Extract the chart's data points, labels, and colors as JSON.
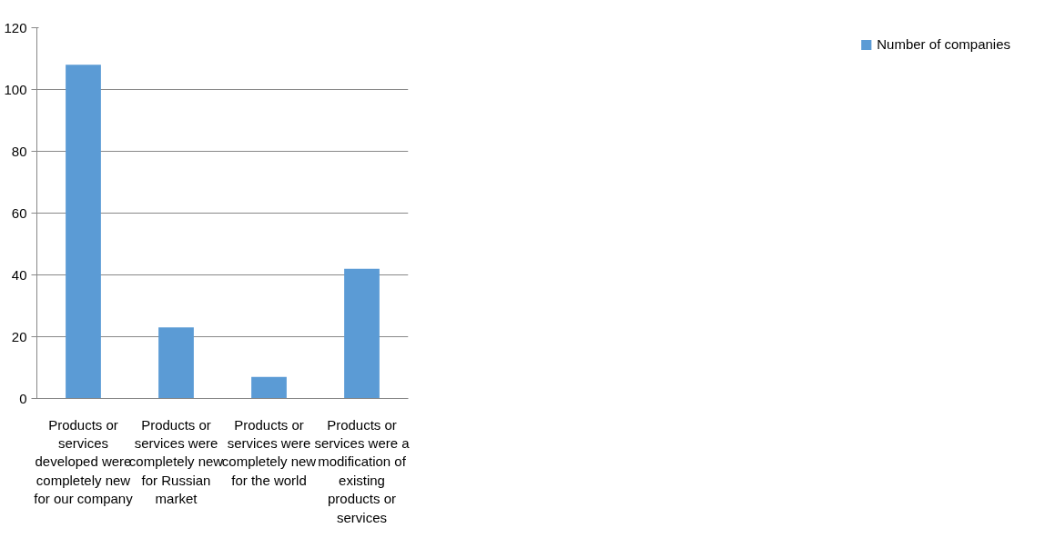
{
  "chart_data": {
    "type": "bar",
    "categories": [
      "Products or services developed were completely new for our company",
      "Products or services were completely new for Russian market",
      "Products or services were completely new for the world",
      "Products or services were a modification of existing products or services"
    ],
    "series": [
      {
        "name": "Number of companies",
        "color": "#5b9bd5",
        "values": [
          108,
          23,
          7,
          42
        ]
      }
    ],
    "ylim": [
      0,
      120
    ],
    "yticks": [
      0,
      20,
      40,
      60,
      80,
      100,
      120
    ],
    "grid": "y",
    "legend": "right"
  }
}
